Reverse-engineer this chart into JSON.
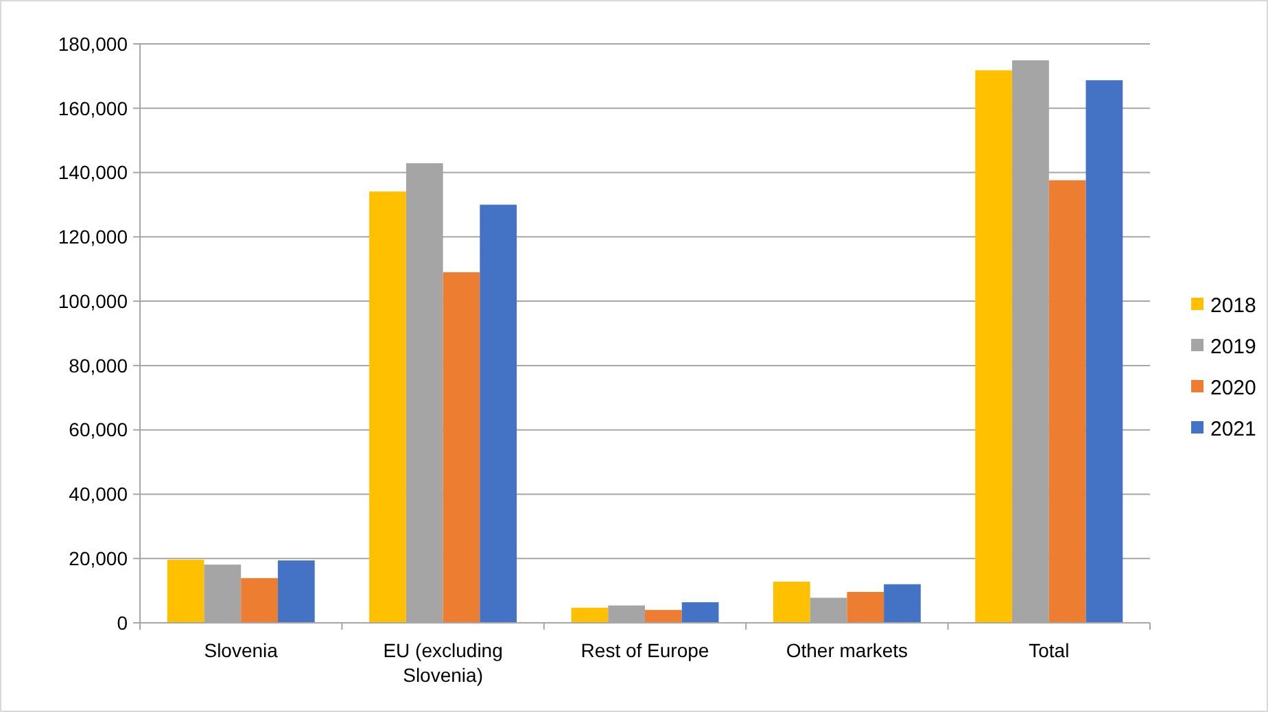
{
  "chart_data": {
    "type": "bar",
    "categories": [
      "Slovenia",
      "EU (excluding Slovenia)",
      "Rest of Europe",
      "Other markets",
      "Total"
    ],
    "series": [
      {
        "name": "2018",
        "color": "#ffc000",
        "values": [
          19600,
          134100,
          4700,
          12800,
          171800
        ]
      },
      {
        "name": "2019",
        "color": "#a5a5a5",
        "values": [
          18100,
          142900,
          5400,
          7800,
          174900
        ]
      },
      {
        "name": "2020",
        "color": "#ed7d31",
        "values": [
          13900,
          109000,
          4000,
          9600,
          137600
        ]
      },
      {
        "name": "2021",
        "color": "#4472c4",
        "values": [
          19400,
          130000,
          6400,
          12000,
          168700
        ]
      }
    ],
    "ylim": [
      0,
      180000
    ],
    "yticks": [
      {
        "value": 0,
        "label": "0"
      },
      {
        "value": 20000,
        "label": "20,000"
      },
      {
        "value": 40000,
        "label": "40,000"
      },
      {
        "value": 60000,
        "label": "60,000"
      },
      {
        "value": 80000,
        "label": "80,000"
      },
      {
        "value": 100000,
        "label": "100,000"
      },
      {
        "value": 120000,
        "label": "120,000"
      },
      {
        "value": 140000,
        "label": "140,000"
      },
      {
        "value": 160000,
        "label": "160,000"
      },
      {
        "value": 180000,
        "label": "180,000"
      }
    ],
    "grid": "y",
    "legend": "right"
  }
}
